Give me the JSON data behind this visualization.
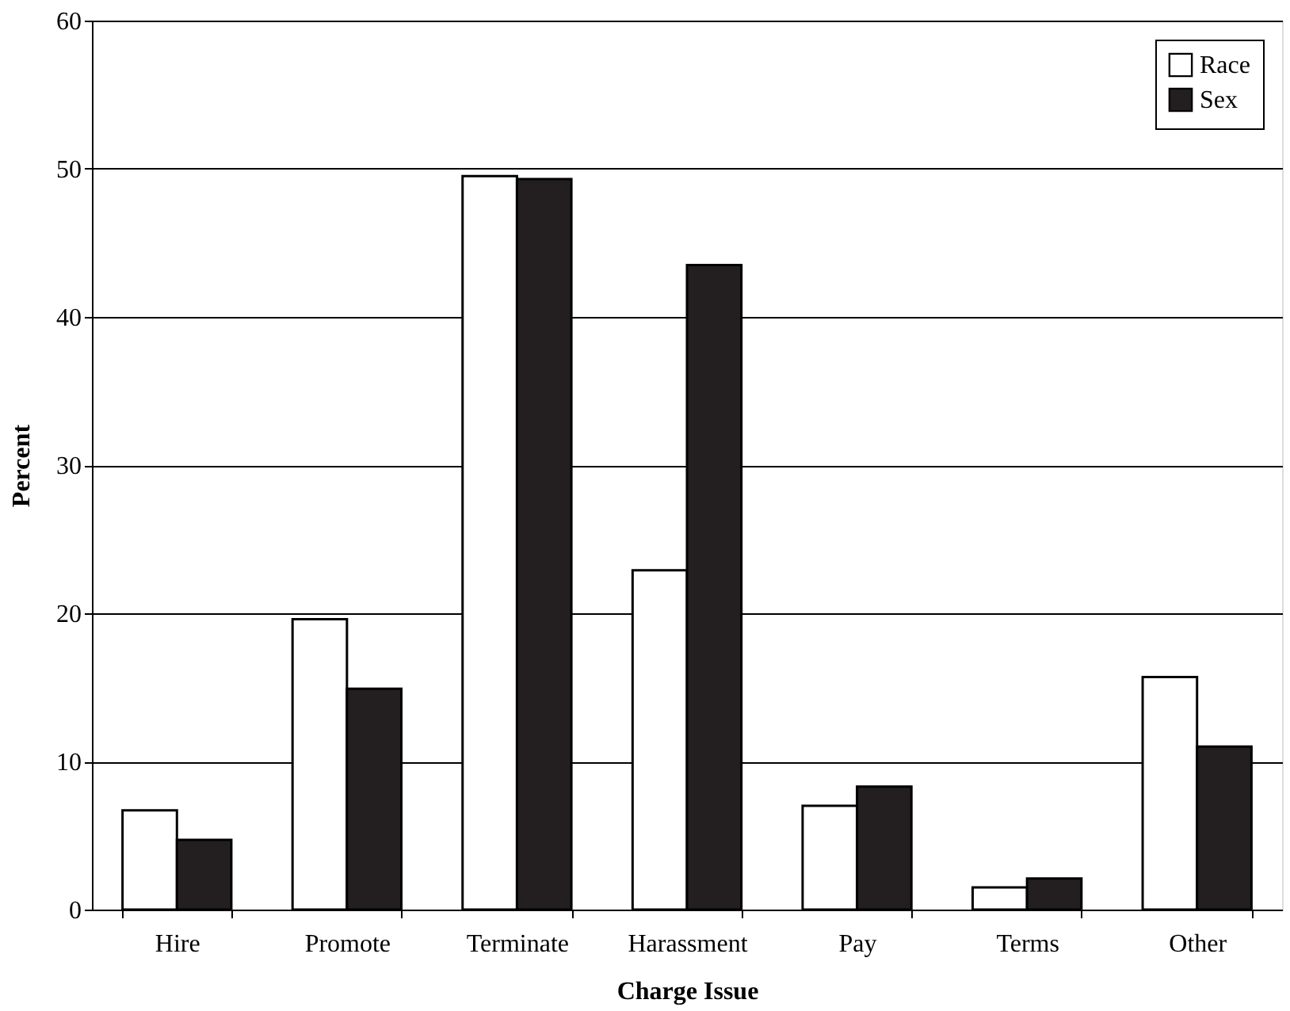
{
  "chart_data": {
    "type": "bar",
    "xlabel": "Charge Issue",
    "ylabel": "Percent",
    "categories": [
      "Hire",
      "Promote",
      "Terminate",
      "Harassment",
      "Pay",
      "Terms",
      "Other"
    ],
    "series": [
      {
        "name": "Race",
        "color": "#ffffff",
        "values": [
          6.7,
          19.6,
          49.5,
          22.9,
          7.0,
          1.5,
          15.7
        ]
      },
      {
        "name": "Sex",
        "color": "#231f20",
        "values": [
          4.7,
          14.9,
          49.3,
          43.5,
          8.3,
          2.1,
          11.0
        ]
      }
    ],
    "ylim": [
      0,
      60
    ],
    "yticks": [
      0,
      10,
      20,
      30,
      40,
      50,
      60
    ],
    "grid": "y",
    "legend": "top right"
  }
}
